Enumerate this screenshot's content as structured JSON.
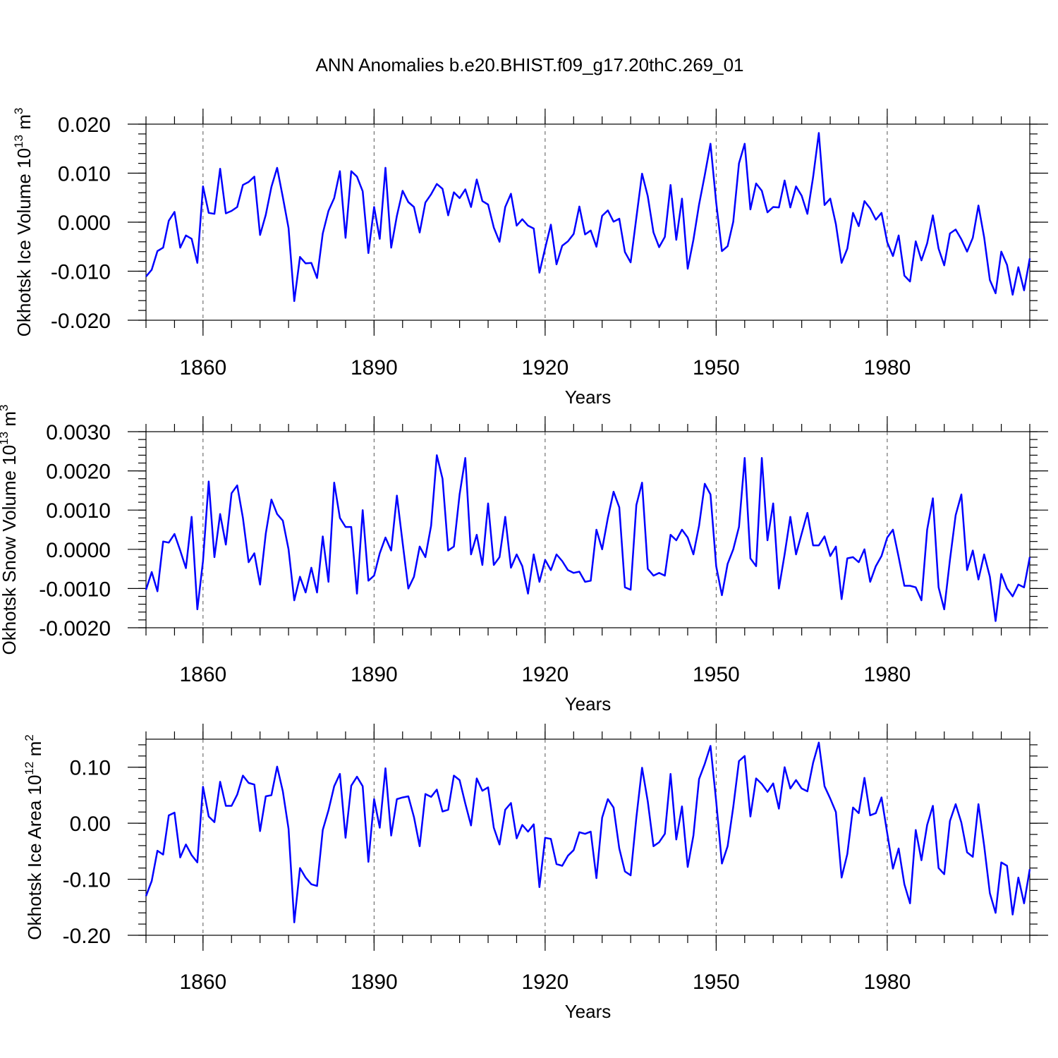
{
  "title": "ANN Anomalies b.e20.BHIST.f09_g17.20thC.269_01",
  "colors": {
    "series": "#0000ff",
    "axis": "#000000",
    "grid": "#555555"
  },
  "chart_data": [
    {
      "type": "line",
      "ylabel": "Okhotsk Ice Volume 10",
      "ylabel_exp": "13",
      "ylabel_unit": "m",
      "ylabel_unit_exp": "3",
      "xlabel": "Years",
      "xlim": [
        1850,
        2005
      ],
      "ylim": [
        -0.02,
        0.02
      ],
      "yticks": [
        -0.02,
        -0.01,
        0.0,
        0.01,
        0.02
      ],
      "ytick_labels": [
        "-0.020",
        "-0.010",
        "0.000",
        "0.010",
        "0.020"
      ],
      "xticks": [
        1860,
        1890,
        1920,
        1950,
        1980
      ],
      "xtick_labels": [
        "1860",
        "1890",
        "1920",
        "1950",
        "1980"
      ],
      "x_start": 1850,
      "values": [
        -0.0111,
        -0.0097,
        -0.0059,
        -0.0052,
        0.0003,
        0.0021,
        -0.0052,
        -0.0027,
        -0.0034,
        -0.0083,
        0.0073,
        0.0019,
        0.0017,
        0.0109,
        0.0018,
        0.0023,
        0.0031,
        0.0076,
        0.0082,
        0.0093,
        -0.0026,
        0.0015,
        0.0072,
        0.0111,
        0.0051,
        -0.0012,
        -0.0161,
        -0.0071,
        -0.0084,
        -0.0083,
        -0.0114,
        -0.0023,
        0.0023,
        0.0049,
        0.0104,
        -0.0032,
        0.0104,
        0.0093,
        0.0063,
        -0.0063,
        0.0031,
        -0.0034,
        0.0111,
        -0.0052,
        0.0013,
        0.0064,
        0.0041,
        0.0031,
        -0.0021,
        0.004,
        0.0057,
        0.0078,
        0.0068,
        0.0014,
        0.0061,
        0.0049,
        0.0067,
        0.0031,
        0.0087,
        0.0043,
        0.0036,
        -0.0011,
        -0.004,
        0.0031,
        0.0058,
        -0.0007,
        0.0006,
        -0.0007,
        -0.0013,
        -0.0103,
        -0.0053,
        -0.0005,
        -0.0086,
        -0.0048,
        -0.0039,
        -0.0024,
        0.0032,
        -0.0025,
        -0.0017,
        -0.005,
        0.0013,
        0.0024,
        0.0001,
        0.0007,
        -0.0061,
        -0.0082,
        0.0009,
        0.0099,
        0.0053,
        -0.0021,
        -0.0051,
        -0.003,
        0.0076,
        -0.0036,
        0.0048,
        -0.0095,
        -0.0036,
        0.0036,
        0.0096,
        0.016,
        0.004,
        -0.0059,
        -0.0049,
        0.0001,
        0.012,
        0.016,
        0.0026,
        0.0079,
        0.0064,
        0.002,
        0.0031,
        0.003,
        0.0085,
        0.003,
        0.0073,
        0.0054,
        0.0017,
        0.0092,
        0.0182,
        0.0035,
        0.0048,
        -0.0004,
        -0.0083,
        -0.0054,
        0.0019,
        -0.0008,
        0.0043,
        0.0028,
        0.0005,
        0.0019,
        -0.0041,
        -0.0069,
        -0.0027,
        -0.0109,
        -0.0121,
        -0.0039,
        -0.0078,
        -0.0043,
        0.0014,
        -0.0054,
        -0.0088,
        -0.0023,
        -0.0015,
        -0.0035,
        -0.006,
        -0.0032,
        0.0034,
        -0.0031,
        -0.0118,
        -0.0145,
        -0.006,
        -0.0087,
        -0.0148,
        -0.0092,
        -0.0139,
        -0.0074
      ]
    },
    {
      "type": "line",
      "ylabel": "Okhotsk Snow Volume 10",
      "ylabel_exp": "13",
      "ylabel_unit": "m",
      "ylabel_unit_exp": "3",
      "xlabel": "Years",
      "xlim": [
        1850,
        2005
      ],
      "ylim": [
        -0.002,
        0.003
      ],
      "yticks": [
        -0.002,
        -0.001,
        0.0,
        0.001,
        0.002,
        0.003
      ],
      "ytick_labels": [
        "-0.0020",
        "-0.0010",
        "0.0000",
        "0.0010",
        "0.0020",
        "0.0030"
      ],
      "xticks": [
        1860,
        1890,
        1920,
        1950,
        1980
      ],
      "xtick_labels": [
        "1860",
        "1890",
        "1920",
        "1950",
        "1980"
      ],
      "x_start": 1850,
      "values": [
        -0.00103,
        -0.00058,
        -0.00107,
        0.0002,
        0.00017,
        0.00039,
        -3e-05,
        -0.00048,
        0.00083,
        -0.00153,
        -0.0003,
        0.00173,
        -0.0002,
        0.0009,
        0.00012,
        0.00143,
        0.00163,
        0.0008,
        -0.00033,
        -0.0001,
        -0.0009,
        0.0004,
        0.00127,
        0.0009,
        0.00073,
        0.0,
        -0.0013,
        -0.0007,
        -0.0011,
        -0.00047,
        -0.0011,
        0.00033,
        -0.00083,
        0.0017,
        0.0008,
        0.00057,
        0.00057,
        -0.00113,
        0.001,
        -0.0008,
        -0.00067,
        -0.0001,
        0.0003,
        -3e-05,
        0.00137,
        0.00017,
        -0.001,
        -0.0007,
        7e-05,
        -0.0002,
        0.0006,
        0.0024,
        0.0018,
        -3e-05,
        7e-05,
        0.0014,
        0.00233,
        -0.00013,
        0.00037,
        -0.0004,
        0.00117,
        -0.0004,
        -0.0002,
        0.00083,
        -0.00047,
        -0.00013,
        -0.00043,
        -0.00113,
        -0.00013,
        -0.00083,
        -0.00027,
        -0.00053,
        -0.00013,
        -0.0003,
        -0.00053,
        -0.0006,
        -0.00057,
        -0.00083,
        -0.0008,
        0.0005,
        0.0,
        0.0008,
        0.00147,
        0.00107,
        -0.00097,
        -0.00103,
        0.00113,
        0.0017,
        -0.0005,
        -0.00067,
        -0.0006,
        -0.00067,
        0.00037,
        0.00023,
        0.0005,
        0.0003,
        -0.00013,
        0.0006,
        0.00167,
        0.0014,
        -0.00043,
        -0.00117,
        -0.00037,
        0.0,
        0.00057,
        0.00233,
        -0.00023,
        -0.00043,
        0.00233,
        0.00023,
        0.00117,
        -0.001,
        -0.00013,
        0.00083,
        -0.00013,
        0.0004,
        0.00093,
        0.0001,
        0.0001,
        0.00033,
        -0.00017,
        7e-05,
        -0.00127,
        -0.00023,
        -0.0002,
        -0.00033,
        0.0,
        -0.00083,
        -0.00043,
        -0.00017,
        0.0003,
        0.0005,
        -0.0002,
        -0.00093,
        -0.00093,
        -0.00097,
        -0.0013,
        0.0005,
        0.0013,
        -0.00097,
        -0.00153,
        -0.00027,
        0.00087,
        0.0014,
        -0.00053,
        -3e-05,
        -0.00077,
        -0.00013,
        -0.0007,
        -0.00183,
        -0.00063,
        -0.001,
        -0.0012,
        -0.0009,
        -0.00097,
        -0.0002
      ]
    },
    {
      "type": "line",
      "ylabel": "Okhotsk Ice Area 10",
      "ylabel_exp": "12",
      "ylabel_unit": "m",
      "ylabel_unit_exp": "2",
      "xlabel": "Years",
      "xlim": [
        1850,
        2005
      ],
      "ylim": [
        -0.2,
        0.15
      ],
      "yticks": [
        -0.2,
        -0.1,
        0.0,
        0.1
      ],
      "ytick_labels": [
        "-0.20",
        "-0.10",
        "0.00",
        "0.10"
      ],
      "xticks": [
        1860,
        1890,
        1920,
        1950,
        1980
      ],
      "xtick_labels": [
        "1860",
        "1890",
        "1920",
        "1950",
        "1980"
      ],
      "x_start": 1850,
      "values": [
        -0.13,
        -0.103,
        -0.049,
        -0.056,
        0.014,
        0.019,
        -0.061,
        -0.038,
        -0.057,
        -0.07,
        0.065,
        0.012,
        0.002,
        0.074,
        0.031,
        0.031,
        0.051,
        0.085,
        0.072,
        0.069,
        -0.014,
        0.048,
        0.05,
        0.101,
        0.057,
        -0.01,
        -0.177,
        -0.08,
        -0.097,
        -0.109,
        -0.112,
        -0.012,
        0.023,
        0.066,
        0.088,
        -0.026,
        0.067,
        0.083,
        0.066,
        -0.069,
        0.043,
        -0.008,
        0.098,
        -0.022,
        0.043,
        0.046,
        0.048,
        0.011,
        -0.041,
        0.052,
        0.047,
        0.06,
        0.021,
        0.024,
        0.085,
        0.077,
        0.035,
        -0.004,
        0.08,
        0.058,
        0.064,
        -0.008,
        -0.038,
        0.024,
        0.036,
        -0.027,
        -0.003,
        -0.015,
        -0.002,
        -0.114,
        -0.026,
        -0.028,
        -0.073,
        -0.076,
        -0.058,
        -0.048,
        -0.016,
        -0.019,
        -0.015,
        -0.098,
        0.01,
        0.043,
        0.028,
        -0.045,
        -0.086,
        -0.093,
        0.01,
        0.099,
        0.039,
        -0.041,
        -0.034,
        -0.019,
        0.088,
        -0.029,
        0.03,
        -0.078,
        -0.022,
        0.079,
        0.106,
        0.138,
        0.039,
        -0.072,
        -0.041,
        0.029,
        0.111,
        0.12,
        0.012,
        0.08,
        0.07,
        0.056,
        0.071,
        0.026,
        0.1,
        0.062,
        0.077,
        0.062,
        0.057,
        0.108,
        0.144,
        0.066,
        0.044,
        0.02,
        -0.097,
        -0.055,
        0.028,
        0.018,
        0.081,
        0.014,
        0.018,
        0.046,
        -0.018,
        -0.081,
        -0.045,
        -0.109,
        -0.143,
        -0.012,
        -0.066,
        -0.003,
        0.031,
        -0.08,
        -0.091,
        0.004,
        0.034,
        0.001,
        -0.052,
        -0.06,
        0.034,
        -0.04,
        -0.125,
        -0.16,
        -0.07,
        -0.076,
        -0.163,
        -0.097,
        -0.143,
        -0.082
      ]
    }
  ]
}
